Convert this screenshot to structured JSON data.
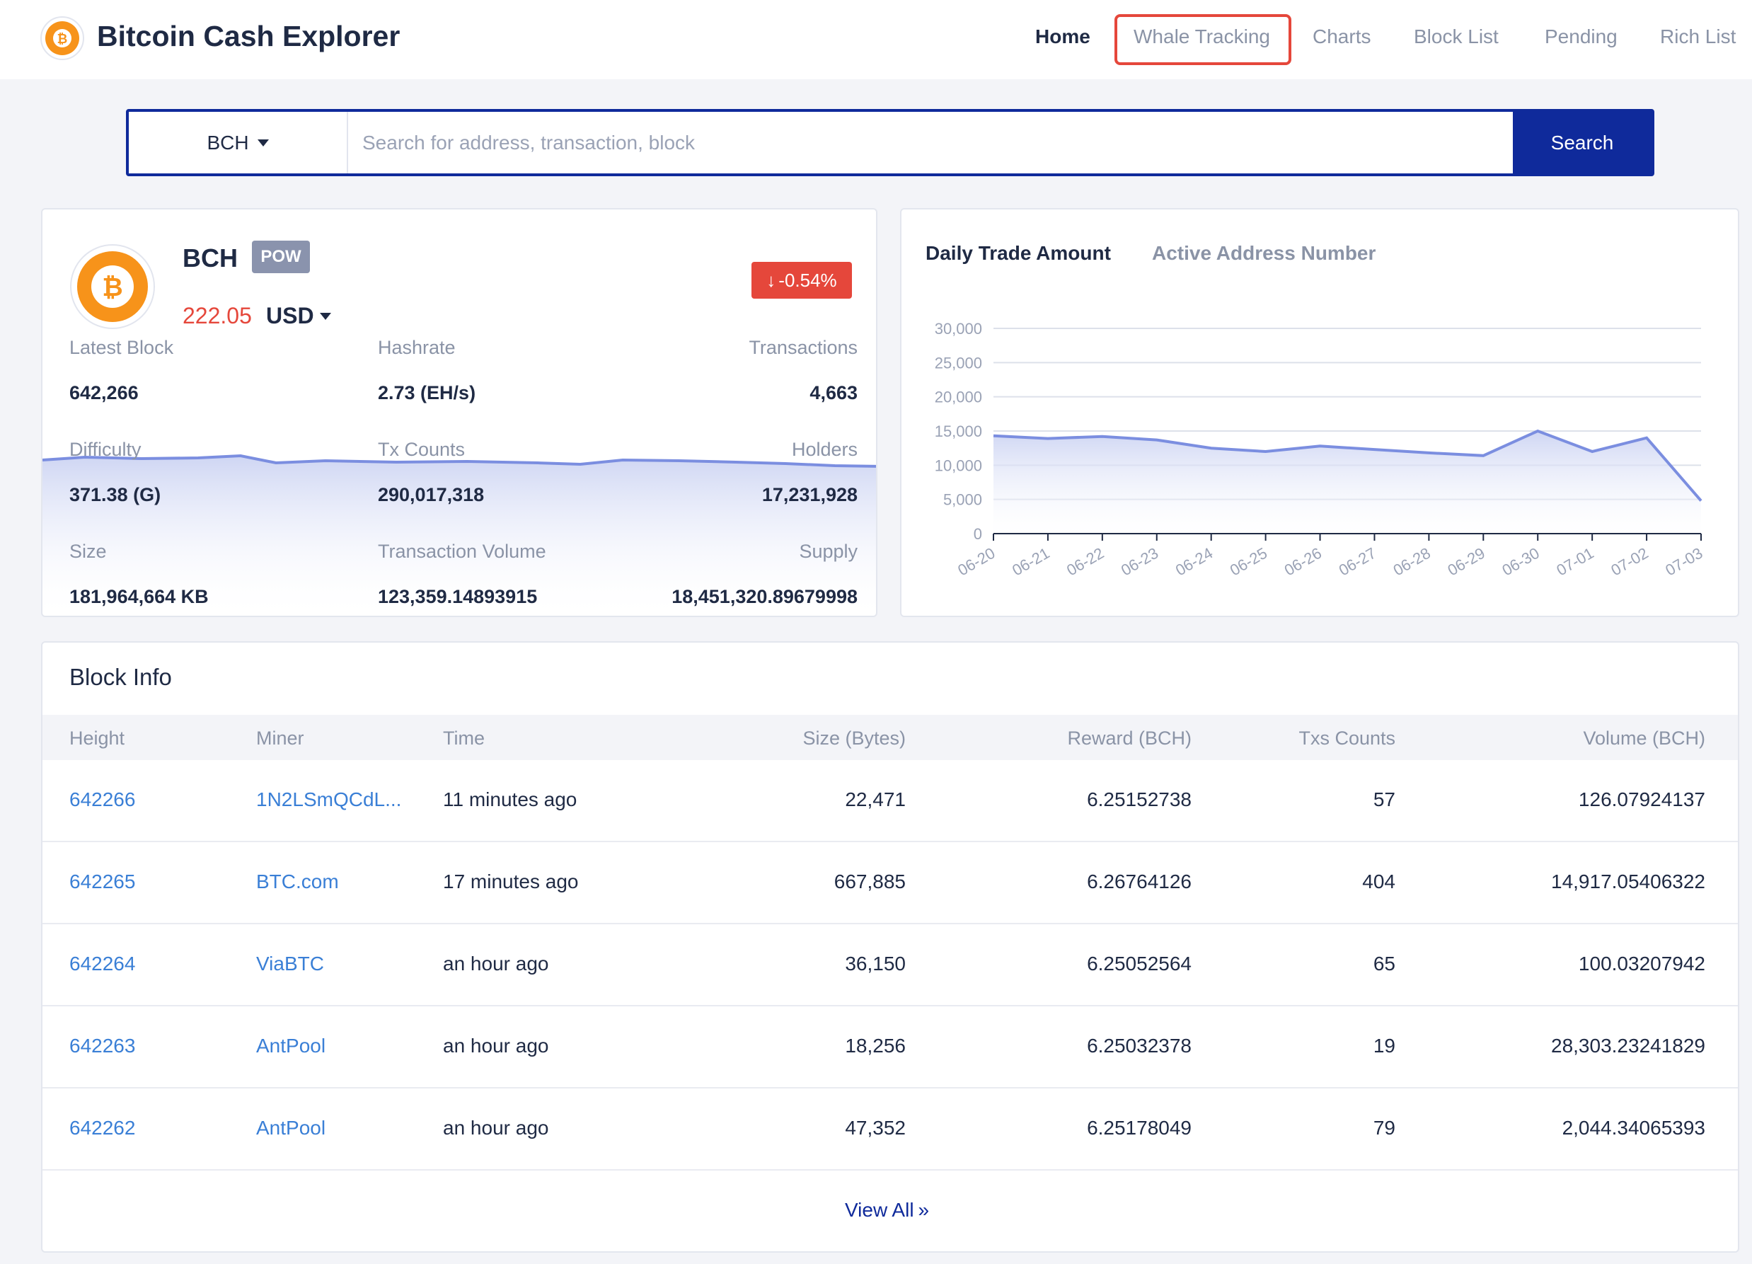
{
  "header": {
    "title": "Bitcoin Cash Explorer",
    "logo_icon": "bitcoin-cash-logo-icon",
    "nav": [
      {
        "label": "Home",
        "active": true
      },
      {
        "label": "Whale Tracking",
        "active": false,
        "highlighted": true
      },
      {
        "label": "Charts",
        "active": false
      },
      {
        "label": "Block List",
        "active": false
      },
      {
        "label": "Pending",
        "active": false
      },
      {
        "label": "Rich List",
        "active": false
      }
    ]
  },
  "search": {
    "selected_coin": "BCH",
    "placeholder": "Search for address, transaction, block",
    "value": "",
    "button_label": "Search"
  },
  "coin": {
    "symbol": "BCH",
    "badge": "POW",
    "price": "222.05",
    "currency": "USD",
    "change": "-0.54%",
    "change_color": "#e5473b",
    "stats": {
      "latest_block_label": "Latest Block",
      "latest_block": "642,266",
      "hashrate_label": "Hashrate",
      "hashrate": "2.73 (EH/s)",
      "transactions_label": "Transactions",
      "transactions": "4,663",
      "difficulty_label": "Difficulty",
      "difficulty": "371.38 (G)",
      "tx_counts_label": "Tx Counts",
      "tx_counts": "290,017,318",
      "holders_label": "Holders",
      "holders": "17,231,928",
      "size_label": "Size",
      "size": "181,964,664 KB",
      "tx_volume_label": "Transaction Volume",
      "tx_volume": "123,359.14893915",
      "supply_label": "Supply",
      "supply": "18,451,320.89679998"
    }
  },
  "chart_tabs": {
    "active": "Daily Trade Amount",
    "inactive": "Active Address Number"
  },
  "chart_data": {
    "type": "area",
    "title": "",
    "x": [
      "06-20",
      "06-21",
      "06-22",
      "06-23",
      "06-24",
      "06-25",
      "06-26",
      "06-27",
      "06-28",
      "06-29",
      "06-30",
      "07-01",
      "07-02",
      "07-03"
    ],
    "series": [
      {
        "values": [
          14300,
          13900,
          14200,
          13700,
          12500,
          12000,
          12800,
          12300,
          11800,
          11400,
          15000,
          12000,
          14000,
          4800
        ]
      }
    ],
    "yticks": [
      "30,000",
      "25,000",
      "20,000",
      "15,000",
      "10,000",
      "5,000",
      "0"
    ],
    "ylim": [
      0,
      30000
    ],
    "grid": true,
    "line_color": "#7b8ee0"
  },
  "blocks": {
    "title": "Block Info",
    "columns": [
      "Height",
      "Miner",
      "Time",
      "Size (Bytes)",
      "Reward (BCH)",
      "Txs Counts",
      "Volume (BCH)"
    ],
    "rows": [
      {
        "height": "642266",
        "miner": "1N2LSmQCdL...",
        "time": "11 minutes ago",
        "size": "22,471",
        "reward": "6.25152738",
        "txs": "57",
        "volume": "126.07924137"
      },
      {
        "height": "642265",
        "miner": "BTC.com",
        "time": "17 minutes ago",
        "size": "667,885",
        "reward": "6.26764126",
        "txs": "404",
        "volume": "14,917.05406322"
      },
      {
        "height": "642264",
        "miner": "ViaBTC",
        "time": "an hour ago",
        "size": "36,150",
        "reward": "6.25052564",
        "txs": "65",
        "volume": "100.03207942"
      },
      {
        "height": "642263",
        "miner": "AntPool",
        "time": "an hour ago",
        "size": "18,256",
        "reward": "6.25032378",
        "txs": "19",
        "volume": "28,303.23241829"
      },
      {
        "height": "642262",
        "miner": "AntPool",
        "time": "an hour ago",
        "size": "47,352",
        "reward": "6.25178049",
        "txs": "79",
        "volume": "2,044.34065393"
      }
    ],
    "view_all": "View All"
  }
}
